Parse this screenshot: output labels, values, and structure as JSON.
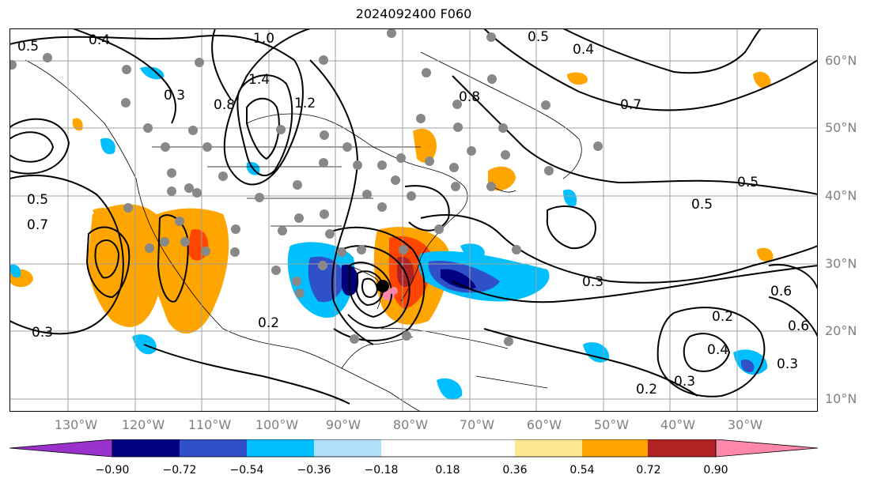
{
  "title": "2024092400 F060",
  "lat_labels": [
    "60°N",
    "50°N",
    "40°N",
    "30°N",
    "20°N",
    "10°N"
  ],
  "lon_labels": [
    "130°W",
    "120°W",
    "110°W",
    "100°W",
    "90°W",
    "80°W",
    "70°W",
    "60°W",
    "50°W",
    "40°W",
    "30°W"
  ],
  "colorbar": {
    "colors": [
      "#9932cc",
      "#000080",
      "#3050c8",
      "#00bfff",
      "#b0e0fa",
      "#ffffff",
      "#ffe890",
      "#ffa500",
      "#ff4500",
      "#b22222",
      "#ff88aa"
    ],
    "tick_labels": [
      "−0.90",
      "−0.72",
      "−0.54",
      "−0.36",
      "−0.18",
      "0.18",
      "0.36",
      "0.54",
      "0.72",
      "0.90"
    ]
  },
  "contour_labels": [
    {
      "text": "0.5"
    },
    {
      "text": "0.4"
    },
    {
      "text": "1.0"
    },
    {
      "text": "1.4"
    },
    {
      "text": "0.8"
    },
    {
      "text": "0.3"
    },
    {
      "text": "0.5"
    },
    {
      "text": "0.8"
    },
    {
      "text": "0.7"
    },
    {
      "text": "0.5"
    },
    {
      "text": "0.5"
    },
    {
      "text": "0.3"
    },
    {
      "text": "0.6"
    },
    {
      "text": "0.2"
    },
    {
      "text": "0.4"
    },
    {
      "text": "0.3"
    },
    {
      "text": "0.2"
    },
    {
      "text": "0.3"
    },
    {
      "text": "0.7"
    },
    {
      "text": "0.5"
    },
    {
      "text": "0.6"
    },
    {
      "text": "0.3"
    },
    {
      "text": "0.2"
    },
    {
      "text": "0.4"
    },
    {
      "text": "1.2"
    }
  ]
}
